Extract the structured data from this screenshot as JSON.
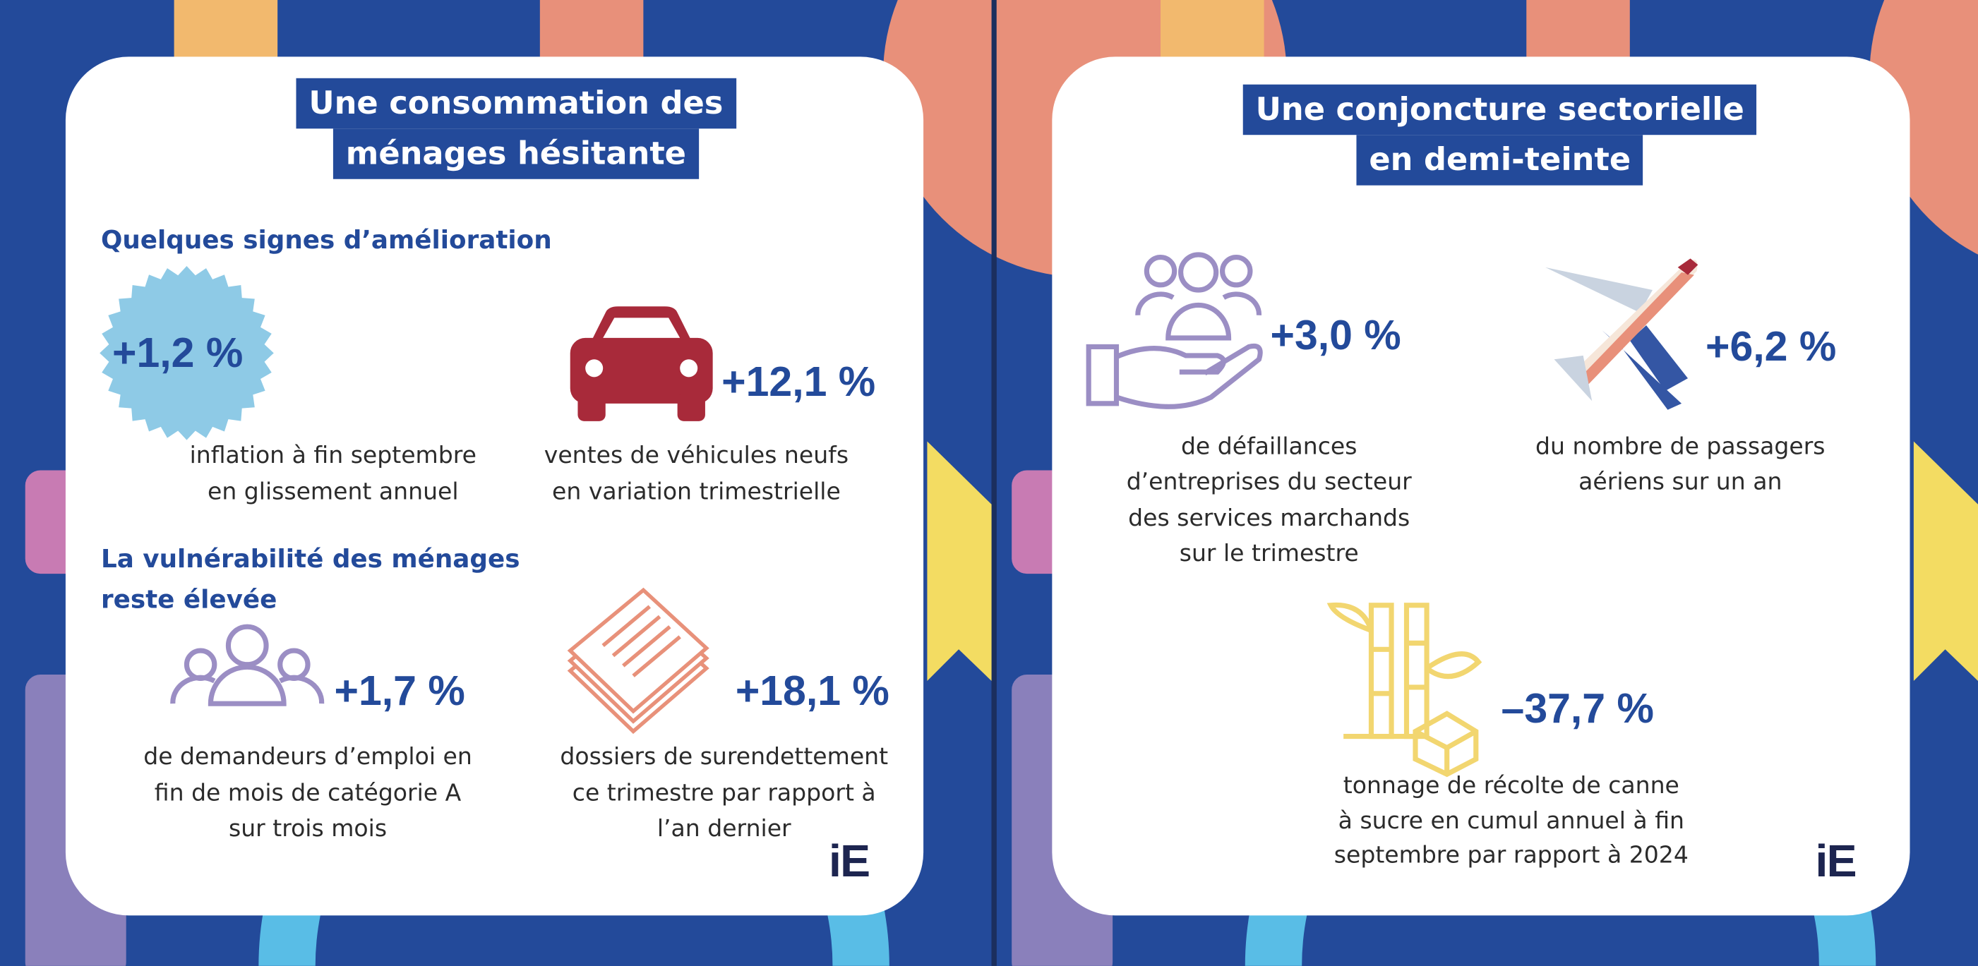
{
  "panels": [
    {
      "title": [
        "Une consommation des",
        "ménages hésitante"
      ],
      "headings": [
        [
          "Quelques signes d’amélioration"
        ],
        [
          "La vulnérabilité des ménages",
          "reste élevée"
        ]
      ],
      "items": [
        {
          "value": "+1,2 %",
          "label": [
            "inflation à fin septembre",
            "en glissement annuel"
          ]
        },
        {
          "value": "+12,1 %",
          "label": [
            "ventes de véhicules neufs",
            "en variation trimestrielle"
          ]
        },
        {
          "value": "+1,7 %",
          "label": [
            "de demandeurs d’emploi en",
            "fin de mois de catégorie A",
            "sur trois mois"
          ]
        },
        {
          "value": "+18,1 %",
          "label": [
            "dossiers de surendettement",
            "ce trimestre par rapport à",
            "l’an dernier"
          ]
        }
      ],
      "logo": "iE"
    },
    {
      "title": [
        "Une conjoncture sectorielle",
        "en demi-teinte"
      ],
      "items": [
        {
          "value": "+3,0 %",
          "label": [
            "de défaillances",
            "d’entreprises du secteur",
            "des services marchands",
            "sur le trimestre"
          ]
        },
        {
          "value": "+6,2 %",
          "label": [
            "du nombre de passagers",
            "aériens sur un an"
          ]
        },
        {
          "value": "–37,7 %",
          "label": [
            "tonnage de récolte de canne",
            "à sucre en cumul annuel à fin",
            "septembre par rapport à 2024"
          ]
        }
      ],
      "logo": "iE"
    }
  ]
}
